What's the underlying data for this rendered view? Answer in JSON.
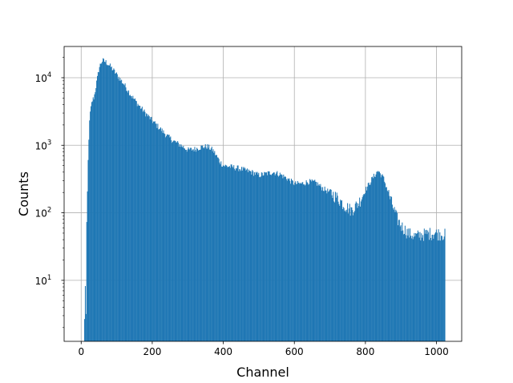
{
  "chart_data": {
    "type": "bar",
    "xlabel": "Channel",
    "ylabel": "Counts",
    "xlim": [
      -48,
      1071
    ],
    "ylim": [
      1.25,
      29000
    ],
    "yscale": "log",
    "grid": true,
    "color": "#1f77b4",
    "x_ticks": [
      {
        "value": 0,
        "label": "0"
      },
      {
        "value": 200,
        "label": "200"
      },
      {
        "value": 400,
        "label": "400"
      },
      {
        "value": 600,
        "label": "600"
      },
      {
        "value": 800,
        "label": "800"
      },
      {
        "value": 1000,
        "label": "1000"
      }
    ],
    "y_ticks": [
      {
        "value": 10,
        "base": "10",
        "exp": "1"
      },
      {
        "value": 100,
        "base": "10",
        "exp": "2"
      },
      {
        "value": 1000,
        "base": "10",
        "exp": "3"
      },
      {
        "value": 10000,
        "base": "10",
        "exp": "4"
      }
    ],
    "profile": [
      [
        9,
        2.5
      ],
      [
        11,
        9
      ],
      [
        13,
        3
      ],
      [
        15,
        60
      ],
      [
        17,
        200
      ],
      [
        20,
        1000
      ],
      [
        24,
        2800
      ],
      [
        30,
        4500
      ],
      [
        36,
        5200
      ],
      [
        42,
        8000
      ],
      [
        50,
        14000
      ],
      [
        56,
        17000
      ],
      [
        60,
        18000
      ],
      [
        70,
        17000
      ],
      [
        80,
        15000
      ],
      [
        90,
        13000
      ],
      [
        100,
        11000
      ],
      [
        120,
        8000
      ],
      [
        140,
        5500
      ],
      [
        160,
        4000
      ],
      [
        180,
        3000
      ],
      [
        200,
        2300
      ],
      [
        220,
        1800
      ],
      [
        240,
        1400
      ],
      [
        260,
        1150
      ],
      [
        280,
        1000
      ],
      [
        300,
        850
      ],
      [
        320,
        880
      ],
      [
        340,
        950
      ],
      [
        355,
        960
      ],
      [
        370,
        850
      ],
      [
        380,
        700
      ],
      [
        390,
        570
      ],
      [
        400,
        500
      ],
      [
        420,
        480
      ],
      [
        440,
        460
      ],
      [
        460,
        430
      ],
      [
        480,
        400
      ],
      [
        500,
        360
      ],
      [
        520,
        380
      ],
      [
        540,
        400
      ],
      [
        560,
        370
      ],
      [
        580,
        320
      ],
      [
        600,
        270
      ],
      [
        620,
        270
      ],
      [
        640,
        290
      ],
      [
        660,
        280
      ],
      [
        680,
        230
      ],
      [
        700,
        200
      ],
      [
        720,
        170
      ],
      [
        740,
        130
      ],
      [
        760,
        110
      ],
      [
        780,
        140
      ],
      [
        800,
        220
      ],
      [
        820,
        330
      ],
      [
        835,
        420
      ],
      [
        850,
        330
      ],
      [
        860,
        230
      ],
      [
        870,
        160
      ],
      [
        880,
        110
      ],
      [
        890,
        80
      ],
      [
        900,
        65
      ],
      [
        920,
        50
      ],
      [
        940,
        45
      ],
      [
        960,
        48
      ],
      [
        980,
        50
      ],
      [
        1000,
        50
      ],
      [
        1023,
        48
      ]
    ]
  }
}
